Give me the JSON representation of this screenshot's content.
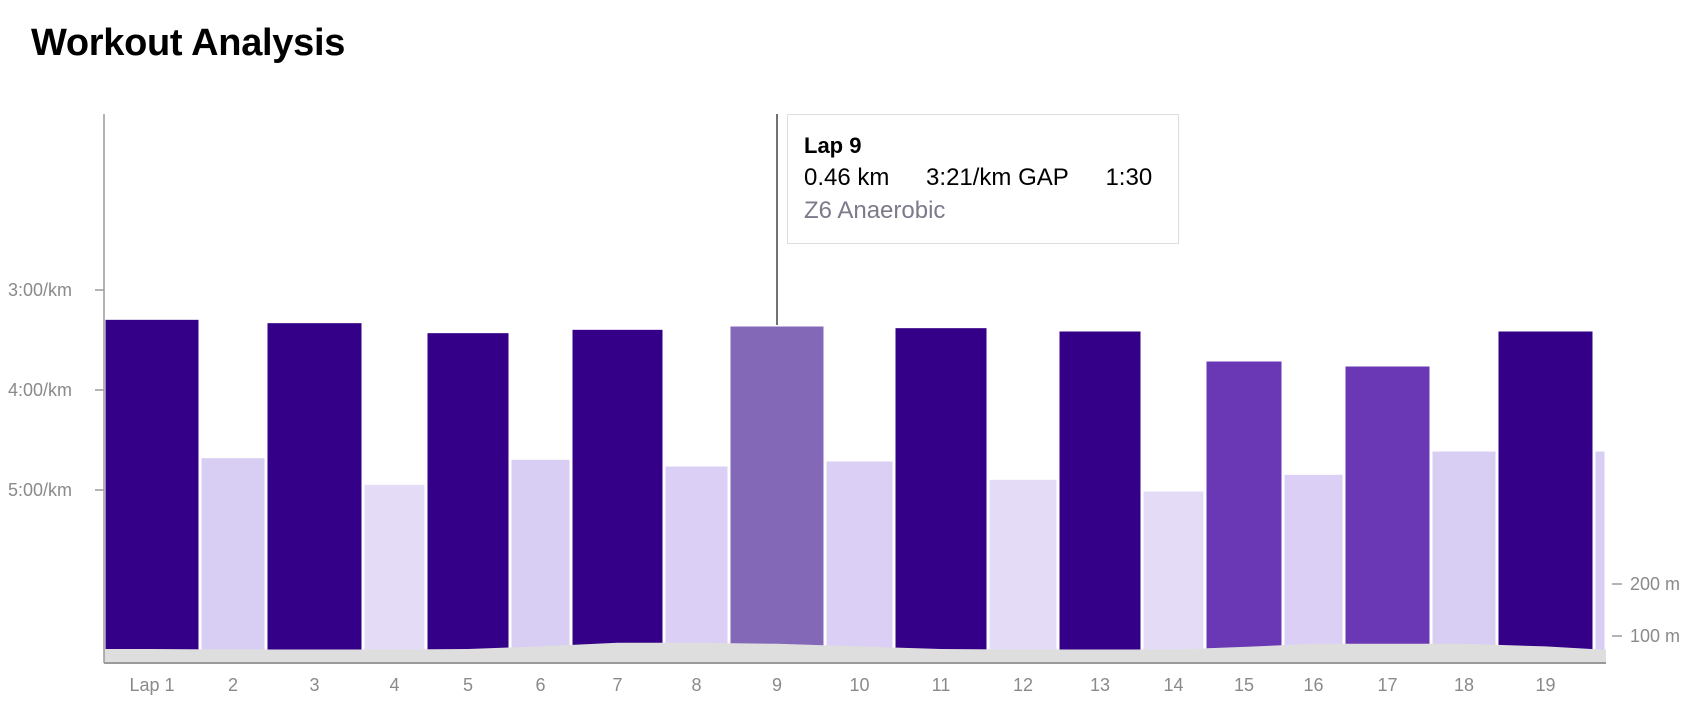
{
  "header": {
    "title": "Workout Analysis"
  },
  "colors": {
    "z2": "#d8cdf2",
    "z1": "#e4dcf7",
    "z4": "#dccff5",
    "z5": "#6a38b4",
    "z6": "#330087",
    "z6_highlight": "#8368b8",
    "elevation": "#dedede",
    "axis": "#9a9a9a",
    "tick_text": "#8a8a8a"
  },
  "tooltip": {
    "lap": "Lap 9",
    "distance": "0.46 km",
    "pace": "3:21/km GAP",
    "time": "1:30",
    "zone": "Z6 Anaerobic"
  },
  "chart_data": {
    "type": "bar",
    "title": "Workout Analysis",
    "categories": [
      "Lap 1",
      "2",
      "3",
      "4",
      "5",
      "6",
      "7",
      "8",
      "9",
      "10",
      "11",
      "12",
      "13",
      "14",
      "15",
      "16",
      "17",
      "18",
      "19",
      ""
    ],
    "values": [
      "3:17",
      "4:40",
      "3:19",
      "4:56",
      "3:25",
      "4:41",
      "3:23",
      "4:45",
      "3:21",
      "4:42",
      "3:22",
      "4:53",
      "3:24",
      "5:00",
      "3:42",
      "4:50",
      "3:45",
      "4:36",
      "3:24",
      "4:36"
    ],
    "zones": [
      "z6",
      "z2",
      "z6",
      "z1",
      "z6",
      "z2",
      "z6",
      "z4",
      "z6",
      "z4",
      "z6",
      "z1",
      "z6",
      "z1",
      "z5",
      "z4",
      "z5",
      "z2",
      "z6",
      "z2"
    ],
    "highlighted_index": 8,
    "y_axis": {
      "label": "",
      "ticks": [
        "3:00/km",
        "4:00/km",
        "5:00/km"
      ],
      "unit": "pace (min/km)"
    },
    "y2_axis": {
      "label": "",
      "ticks": [
        "200 m",
        "100 m"
      ],
      "unit": "elevation (m)"
    },
    "elevation_series": {
      "name": "",
      "values_m": [
        75,
        74,
        74,
        74,
        75,
        80,
        87,
        87,
        85,
        80,
        75,
        74,
        74,
        74,
        79,
        85,
        85,
        85,
        80,
        74
      ]
    }
  }
}
